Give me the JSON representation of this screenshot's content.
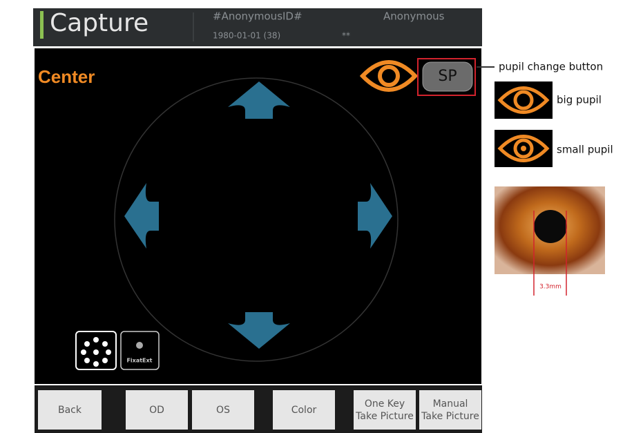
{
  "header": {
    "title": "Capture",
    "patient_id": "#AnonymousID#",
    "patient_name": "Anonymous",
    "birth_date": "1980-01-01 (38)",
    "flag": "**"
  },
  "main": {
    "mode_label": "Center",
    "pupil_button": "SP",
    "fixation_label": "FixatExt"
  },
  "buttons": [
    [
      "Back"
    ],
    [
      "OD"
    ],
    [
      "OS"
    ],
    [
      "Color"
    ],
    [
      "One Key",
      "Take Picture"
    ],
    [
      "Manual",
      "Take Picture"
    ]
  ],
  "annotations": {
    "pupil_change": "pupil change button",
    "big_pupil": "big pupil",
    "small_pupil": "small pupil",
    "measure": "3.3mm"
  }
}
